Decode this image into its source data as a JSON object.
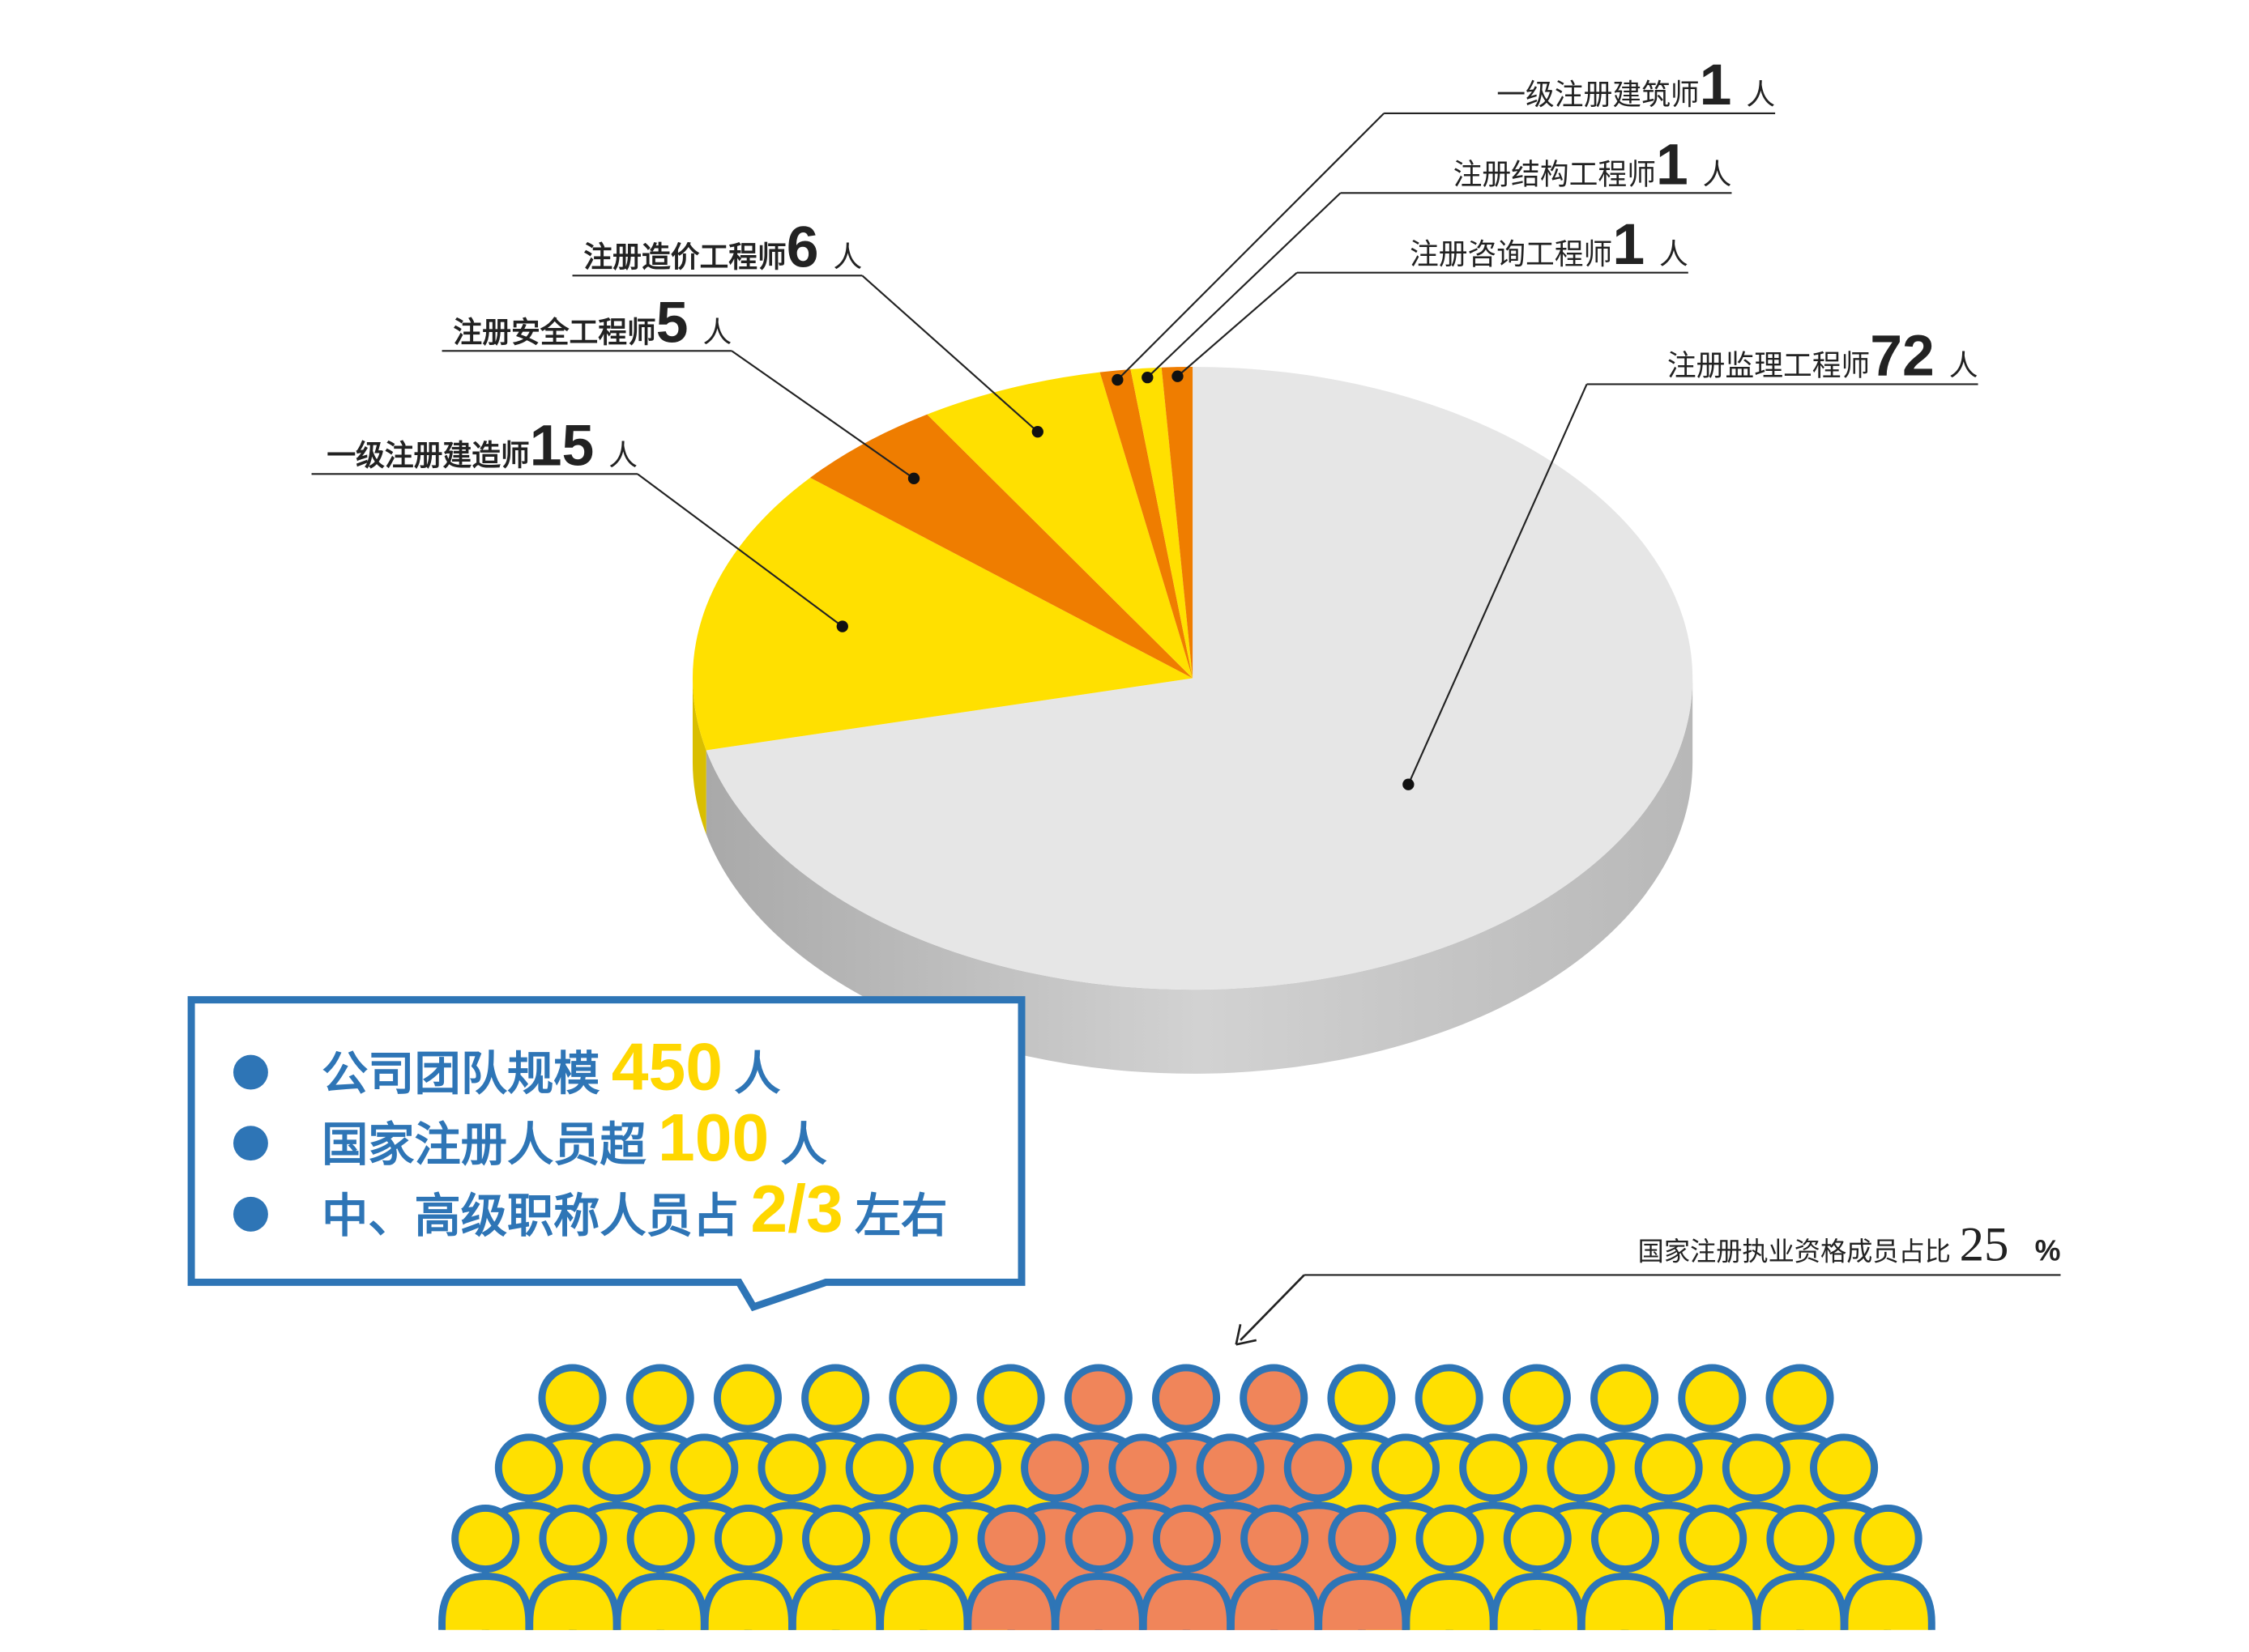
{
  "chart_data": {
    "type": "pie",
    "categories": [
      "注册监理工程师",
      "一级注册建造师",
      "注册安全工程师",
      "注册造价工程师",
      "一级注册建筑师",
      "注册结构工程师",
      "注册咨询工程师"
    ],
    "values": [
      72,
      15,
      5,
      6,
      1,
      1,
      1
    ],
    "colors": [
      "#e6e6e6",
      "#ffe000",
      "#ef7d00",
      "#ffe000",
      "#ef7d00",
      "#ffe000",
      "#ef7d00"
    ],
    "unit": "人"
  },
  "summary": {
    "items": [
      {
        "text": "公司团队规模",
        "number": 450,
        "unit": "人"
      },
      {
        "text": "国家注册人员超",
        "number": 100,
        "unit": "人"
      },
      {
        "text": "中、高级职称人员占",
        "number": "2/3",
        "unit": "左右"
      }
    ]
  },
  "footnote": {
    "text": "国家注册执业资格成员占比",
    "value": 25,
    "unit": "%"
  }
}
